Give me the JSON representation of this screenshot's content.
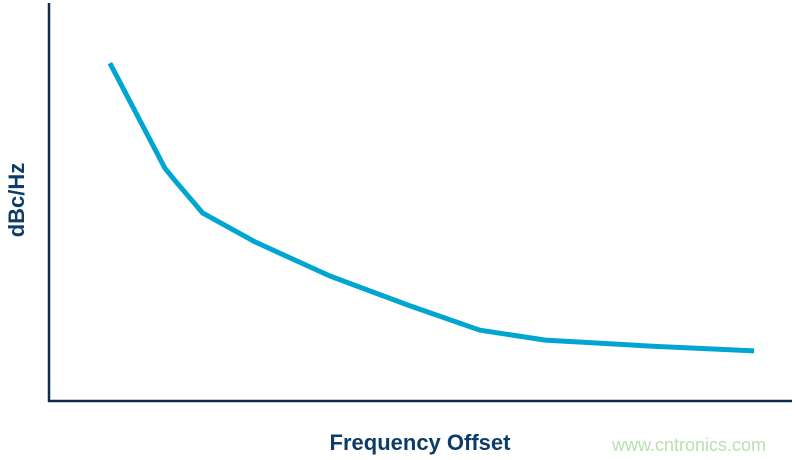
{
  "chart_data": {
    "type": "line",
    "title": "",
    "xlabel": "Frequency Offset",
    "ylabel": "dBc/Hz",
    "xlim": [
      0,
      100
    ],
    "ylim": [
      0,
      100
    ],
    "grid": false,
    "ticks": false,
    "series": [
      {
        "x": [
          8.2,
          15.6,
          17.0,
          20.7,
          27.7,
          37.8,
          48.6,
          58.0,
          66.8,
          80.9,
          94.9
        ],
        "y": [
          84.9,
          58.5,
          55.3,
          47.2,
          40.0,
          31.4,
          23.9,
          17.8,
          15.3,
          13.8,
          12.6
        ],
        "color": "#00a6d1"
      }
    ]
  },
  "colors": {
    "axis": "#0f2c4a",
    "label": "#0d3d66",
    "watermark": "#b9e0b0"
  },
  "watermark": "www.cntronics.com"
}
